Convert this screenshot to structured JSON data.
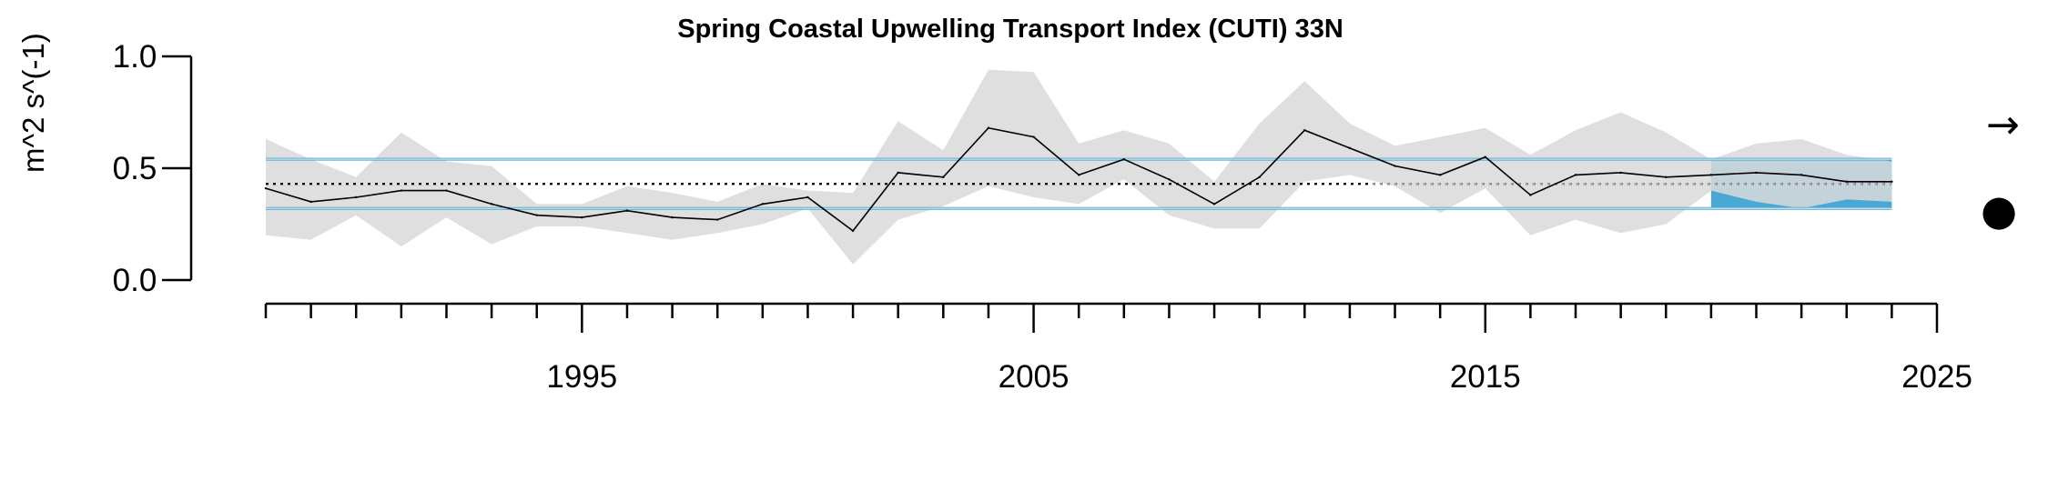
{
  "chart_data": {
    "type": "line",
    "title": "Spring Coastal Upwelling Transport Index (CUTI) 33N",
    "xlabel": "",
    "ylabel": "m^2 s^(-1)",
    "xlim": [
      1988,
      2025
    ],
    "ylim": [
      0.0,
      1.0
    ],
    "x_tick_labels": [
      "1995",
      "2005",
      "2015",
      "2025"
    ],
    "y_tick_labels": [
      "0.0",
      "0.5",
      "1.0"
    ],
    "x": [
      1988,
      1989,
      1990,
      1991,
      1992,
      1993,
      1994,
      1995,
      1996,
      1997,
      1998,
      1999,
      2000,
      2001,
      2002,
      2003,
      2004,
      2005,
      2006,
      2007,
      2008,
      2009,
      2010,
      2011,
      2012,
      2013,
      2014,
      2015,
      2016,
      2017,
      2018,
      2019,
      2020,
      2021,
      2022,
      2023,
      2024
    ],
    "series": [
      {
        "values": [
          0.41,
          0.35,
          0.37,
          0.4,
          0.4,
          0.34,
          0.29,
          0.28,
          0.31,
          0.28,
          0.27,
          0.34,
          0.37,
          0.22,
          0.48,
          0.46,
          0.68,
          0.64,
          0.47,
          0.54,
          0.45,
          0.34,
          0.46,
          0.67,
          0.59,
          0.51,
          0.47,
          0.55,
          0.38,
          0.47,
          0.48,
          0.46,
          0.47,
          0.48,
          0.47,
          0.44,
          0.44
        ],
        "upper": [
          0.63,
          0.54,
          0.46,
          0.66,
          0.53,
          0.51,
          0.34,
          0.34,
          0.42,
          0.39,
          0.35,
          0.43,
          0.4,
          0.39,
          0.71,
          0.58,
          0.94,
          0.93,
          0.61,
          0.67,
          0.61,
          0.44,
          0.7,
          0.89,
          0.7,
          0.6,
          0.64,
          0.68,
          0.56,
          0.67,
          0.75,
          0.66,
          0.54,
          0.61,
          0.63,
          0.56,
          0.53
        ],
        "lower": [
          0.2,
          0.18,
          0.29,
          0.15,
          0.28,
          0.16,
          0.24,
          0.24,
          0.21,
          0.18,
          0.21,
          0.25,
          0.32,
          0.07,
          0.27,
          0.33,
          0.42,
          0.37,
          0.34,
          0.45,
          0.29,
          0.23,
          0.23,
          0.44,
          0.47,
          0.42,
          0.3,
          0.41,
          0.2,
          0.27,
          0.21,
          0.25,
          0.4,
          0.35,
          0.32,
          0.36,
          0.35
        ],
        "line_color": "#000000",
        "band_color": "#d9d9d9"
      }
    ],
    "reference_lines": {
      "mean": 0.43,
      "upper_sd": 0.54,
      "lower_sd": 0.32,
      "sd_color": "#4aa9d4",
      "mean_color": "#000000"
    },
    "recent_window": {
      "start": 2020,
      "end": 2024,
      "color": "#4aa9d4"
    },
    "indicators": {
      "trend": "→",
      "status": "●"
    },
    "grid": false,
    "legend": "none"
  }
}
